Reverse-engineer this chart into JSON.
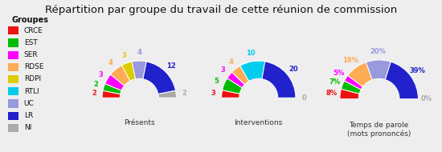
{
  "title": "Répartition par groupe du travail de cette réunion de commission",
  "groups": [
    "CRCE",
    "EST",
    "SER",
    "RDSE",
    "RDPI",
    "RTLI",
    "UC",
    "LR",
    "NI"
  ],
  "colors": [
    "#ee1111",
    "#00bb00",
    "#ff00ff",
    "#ffaa55",
    "#ddcc00",
    "#00ccee",
    "#9999dd",
    "#2222cc",
    "#aaaaaa"
  ],
  "label_colors": [
    "#ee1111",
    "#00bb00",
    "#ff00ff",
    "#ffaa55",
    "#ddcc00",
    "#00ccee",
    "#9999dd",
    "#2222cc",
    "#aaaaaa"
  ],
  "presentes": [
    2,
    2,
    3,
    4,
    3,
    0,
    4,
    12,
    2
  ],
  "interventions": [
    3,
    5,
    3,
    4,
    0,
    10,
    0,
    20,
    0
  ],
  "temps_parole_pct": [
    8,
    7,
    5,
    18,
    0,
    0,
    20,
    39,
    0
  ],
  "temps_parole_zero_labels": [
    false,
    false,
    false,
    false,
    true,
    true,
    false,
    false,
    true
  ],
  "chart_titles": [
    "Présents",
    "Interventions",
    "Temps de parole\n(mots prononcés)"
  ],
  "background_color": "#eeeeee",
  "legend_bg": "#ffffff",
  "legend_title": "Groupes",
  "title_fontsize": 9.5,
  "label_fontsize": 6.0,
  "legend_fontsize": 6.5
}
